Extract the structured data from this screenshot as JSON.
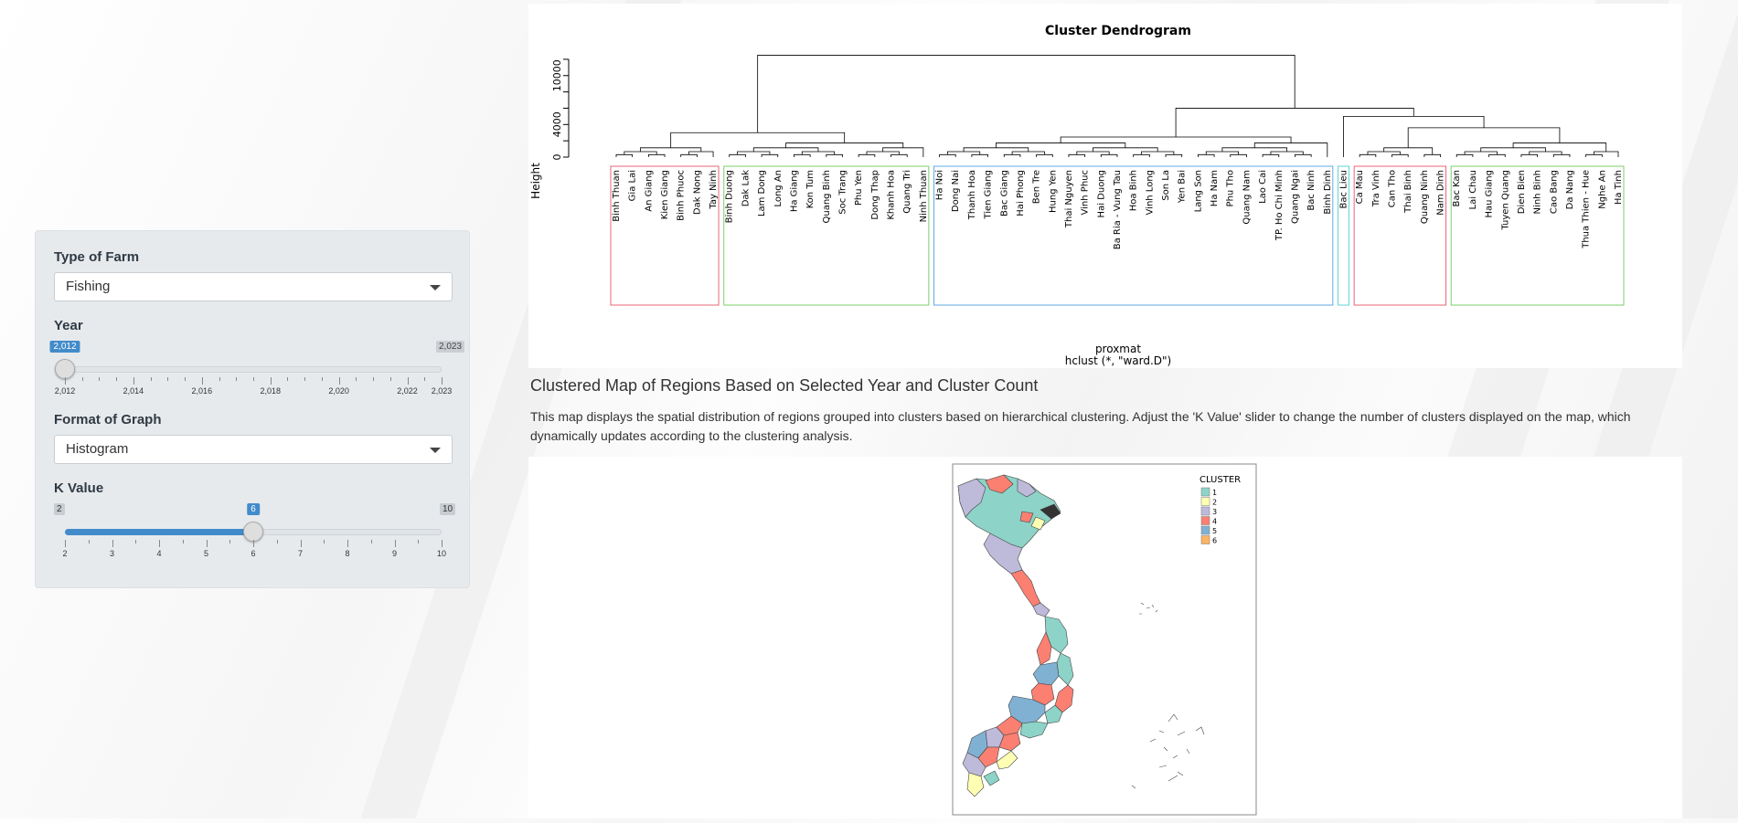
{
  "sidebar": {
    "farm_label": "Type of Farm",
    "farm_value": "Fishing",
    "year_label": "Year",
    "year_min": "2,012",
    "year_max": "2,023",
    "year_current": "2,012",
    "year_ticks": [
      "2,012",
      "2,014",
      "2,016",
      "2,018",
      "2,020",
      "2,022",
      "2,023"
    ],
    "format_label": "Format of Graph",
    "format_value": "Histogram",
    "k_label": "K Value",
    "k_min": "2",
    "k_max": "10",
    "k_current": "6",
    "k_value": 6,
    "k_ticks": [
      "2",
      "3",
      "4",
      "5",
      "6",
      "7",
      "8",
      "9",
      "10"
    ]
  },
  "main": {
    "section_title": "Clustered Map of Regions Based on Selected Year and Cluster Count",
    "section_desc": "This map displays the spatial distribution of regions grouped into clusters based on hierarchical clustering. Adjust the 'K Value' slider to change the number of clusters displayed on the map, which dynamically updates according to the clustering analysis."
  },
  "chart_data": [
    {
      "type": "dendrogram",
      "title": "Cluster Dendrogram",
      "ylabel": "Height",
      "xlabel": "proxmat",
      "sub": "hclust (*, \"ward.D\")",
      "yticks": [
        "0",
        "4000",
        "10000"
      ],
      "clusters": [
        {
          "color": "#e8667a",
          "leaves": [
            "Binh Thuan",
            "Gia Lai",
            "An Giang",
            "Kien Giang",
            "Binh Phuoc",
            "Dak Nong",
            "Tay Ninh"
          ]
        },
        {
          "color": "#7cce6a",
          "leaves": [
            "Binh Duong",
            "Dak Lak",
            "Lam Dong",
            "Long An",
            "Ha Giang",
            "Kon Tum",
            "Quang Binh",
            "Soc Trang",
            "Phu Yen",
            "Dong Thap",
            "Khanh Hoa",
            "Quang Tri",
            "Ninh Thuan"
          ]
        },
        {
          "color": "#5fa9e6",
          "leaves": [
            "Ha Noi",
            "Dong Nai",
            "Thanh Hoa",
            "Tien Giang",
            "Bac Giang",
            "Hai Phong",
            "Ben Tre",
            "Hung Yen",
            "Thai Nguyen",
            "Vinh Phuc",
            "Hai Duong",
            "Ba Ria - Vung Tau",
            "Hoa Binh",
            "Vinh Long",
            "Son La",
            "Yen Bai",
            "Lang Son",
            "Ha Nam",
            "Phu Tho",
            "Quang Nam",
            "Lao Cai",
            "TP. Ho Chi Minh",
            "Quang Ngai",
            "Bac Ninh",
            "Binh Dinh"
          ]
        },
        {
          "color": "#5fd6d6",
          "leaves": [
            "Bac Lieu"
          ]
        },
        {
          "color": "#e8667a",
          "leaves": [
            "Ca Mau",
            "Tra Vinh",
            "Can Tho",
            "Thai Binh",
            "Quang Ninh",
            "Nam Dinh"
          ]
        },
        {
          "color": "#7cce6a",
          "leaves": [
            "Bac Kan",
            "Lai Chau",
            "Hau Giang",
            "Tuyen Quang",
            "Dien Bien",
            "Ninh Binh",
            "Cao Bang",
            "Da Nang",
            "Thua Thien - Hue",
            "Nghe An",
            "Ha Tinh"
          ]
        }
      ]
    },
    {
      "type": "map",
      "legend_title": "CLUSTER",
      "legend": [
        {
          "label": "1",
          "color": "#8dd3c7"
        },
        {
          "label": "2",
          "color": "#ffffb3"
        },
        {
          "label": "3",
          "color": "#bebada"
        },
        {
          "label": "4",
          "color": "#fb8072"
        },
        {
          "label": "5",
          "color": "#80b1d3"
        },
        {
          "label": "6",
          "color": "#fdb462"
        }
      ]
    }
  ]
}
